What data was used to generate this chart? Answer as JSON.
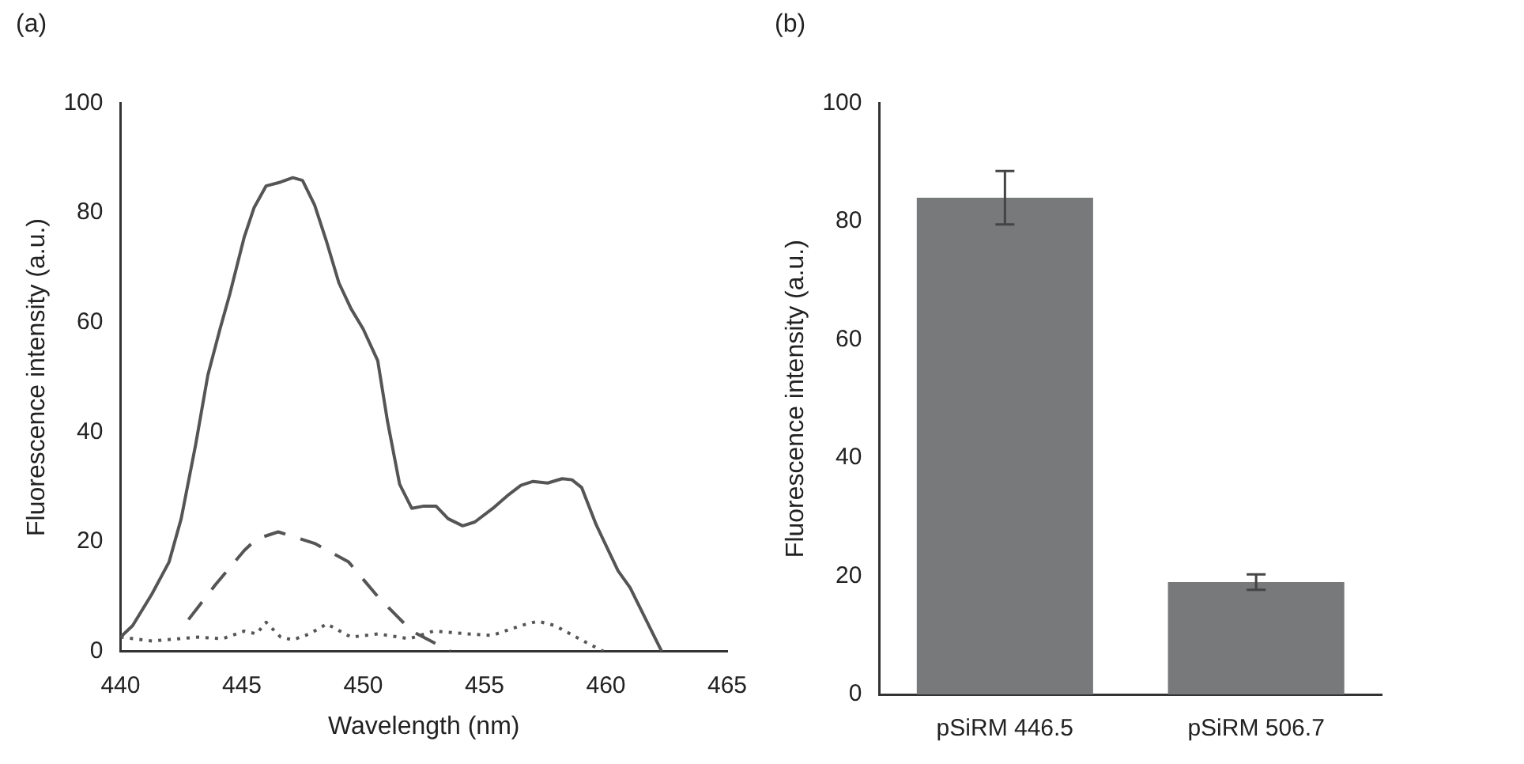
{
  "chart_data": [
    {
      "type": "line",
      "title": "(a)",
      "xlabel": "Wavelength (nm)",
      "ylabel": "Fluorescence intensity (a.u.)",
      "xlim": [
        440,
        465
      ],
      "xticks": [
        440,
        445,
        450,
        455,
        460,
        465
      ],
      "ylim": [
        0,
        100
      ],
      "yticks": [
        0,
        20,
        40,
        60,
        80,
        100
      ],
      "grid": false,
      "legend": false,
      "marker": "none",
      "series": [
        {
          "color": "#555555",
          "line_style": "solid",
          "x": [
            440,
            440.5,
            441.3,
            442.0,
            442.5,
            443.1,
            443.6,
            444.1,
            444.5,
            445.1,
            445.5,
            446.0,
            446.6,
            447.1,
            447.5,
            448.0,
            448.5,
            449.0,
            449.5,
            450.0,
            450.6,
            451.0,
            451.5,
            452.0,
            452.5,
            453.0,
            453.5,
            454.1,
            454.6,
            455.4,
            456.0,
            456.5,
            457.0,
            457.6,
            458.2,
            458.6,
            459.0,
            459.6,
            460.5,
            461.0,
            462.3
          ],
          "values": [
            2.6,
            4.7,
            10.5,
            16.3,
            24.2,
            37.8,
            50.4,
            58.8,
            65.1,
            75.6,
            80.9,
            84.9,
            85.6,
            86.4,
            85.9,
            81.4,
            74.6,
            67.2,
            62.5,
            58.8,
            53.0,
            42.0,
            30.5,
            26.1,
            26.5,
            26.5,
            24.2,
            22.9,
            23.6,
            26.3,
            28.6,
            30.3,
            31.0,
            30.7,
            31.5,
            31.3,
            29.9,
            23.1,
            14.7,
            11.6,
            0
          ]
        },
        {
          "color": "#555555",
          "line_style": "dashed",
          "x": [
            442.8,
            443.9,
            445.1,
            445.6,
            446.5,
            448.0,
            449.4,
            450.6,
            452.0,
            453.6
          ],
          "values": [
            5.8,
            12.1,
            18.4,
            20.5,
            21.8,
            19.7,
            16.3,
            10.0,
            3.7,
            0
          ]
        },
        {
          "color": "#555555",
          "line_style": "dotted",
          "x": [
            440,
            441.3,
            443.2,
            444.2,
            445.1,
            445.6,
            446.0,
            446.6,
            447.1,
            447.8,
            448.5,
            449.5,
            450.6,
            451.9,
            452.9,
            454.3,
            455.3,
            456.5,
            457.2,
            457.9,
            458.9,
            459.9
          ],
          "values": [
            2.6,
            1.9,
            2.6,
            2.3,
            3.7,
            3.2,
            5.3,
            2.6,
            2.1,
            3.2,
            5.0,
            2.6,
            3.2,
            2.3,
            3.7,
            3.2,
            2.9,
            4.7,
            5.5,
            4.7,
            2.3,
            0
          ]
        }
      ]
    },
    {
      "type": "bar",
      "title": "(b)",
      "ylabel": "Fluorescence intensity (a.u.)",
      "categories": [
        "pSiRM 446.5",
        "pSiRM 506.7"
      ],
      "values": [
        84,
        19
      ],
      "errors": [
        4.5,
        1.3
      ],
      "color": "#77797b",
      "ylim": [
        0,
        100
      ],
      "yticks": [
        0,
        20,
        40,
        60,
        80,
        100
      ],
      "grid": false,
      "legend": false
    }
  ]
}
